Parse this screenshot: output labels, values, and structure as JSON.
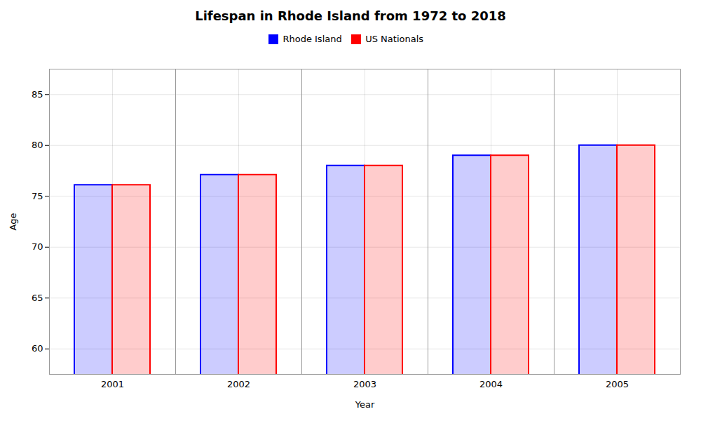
{
  "chart_data": {
    "type": "bar",
    "title": "Lifespan in Rhode Island from 1972 to 2018",
    "xlabel": "Year",
    "ylabel": "Age",
    "categories": [
      "2001",
      "2002",
      "2003",
      "2004",
      "2005"
    ],
    "series": [
      {
        "name": "Rhode Island",
        "color": "#0000ff",
        "values": [
          76.1,
          77.1,
          78.0,
          79.0,
          80.0
        ]
      },
      {
        "name": "US Nationals",
        "color": "#ff0000",
        "values": [
          76.1,
          77.1,
          78.0,
          79.0,
          80.0
        ]
      }
    ],
    "ylim": [
      57.5,
      87.5
    ],
    "yticks": [
      60,
      65,
      70,
      75,
      80,
      85
    ],
    "grid": true,
    "legend": "top"
  }
}
